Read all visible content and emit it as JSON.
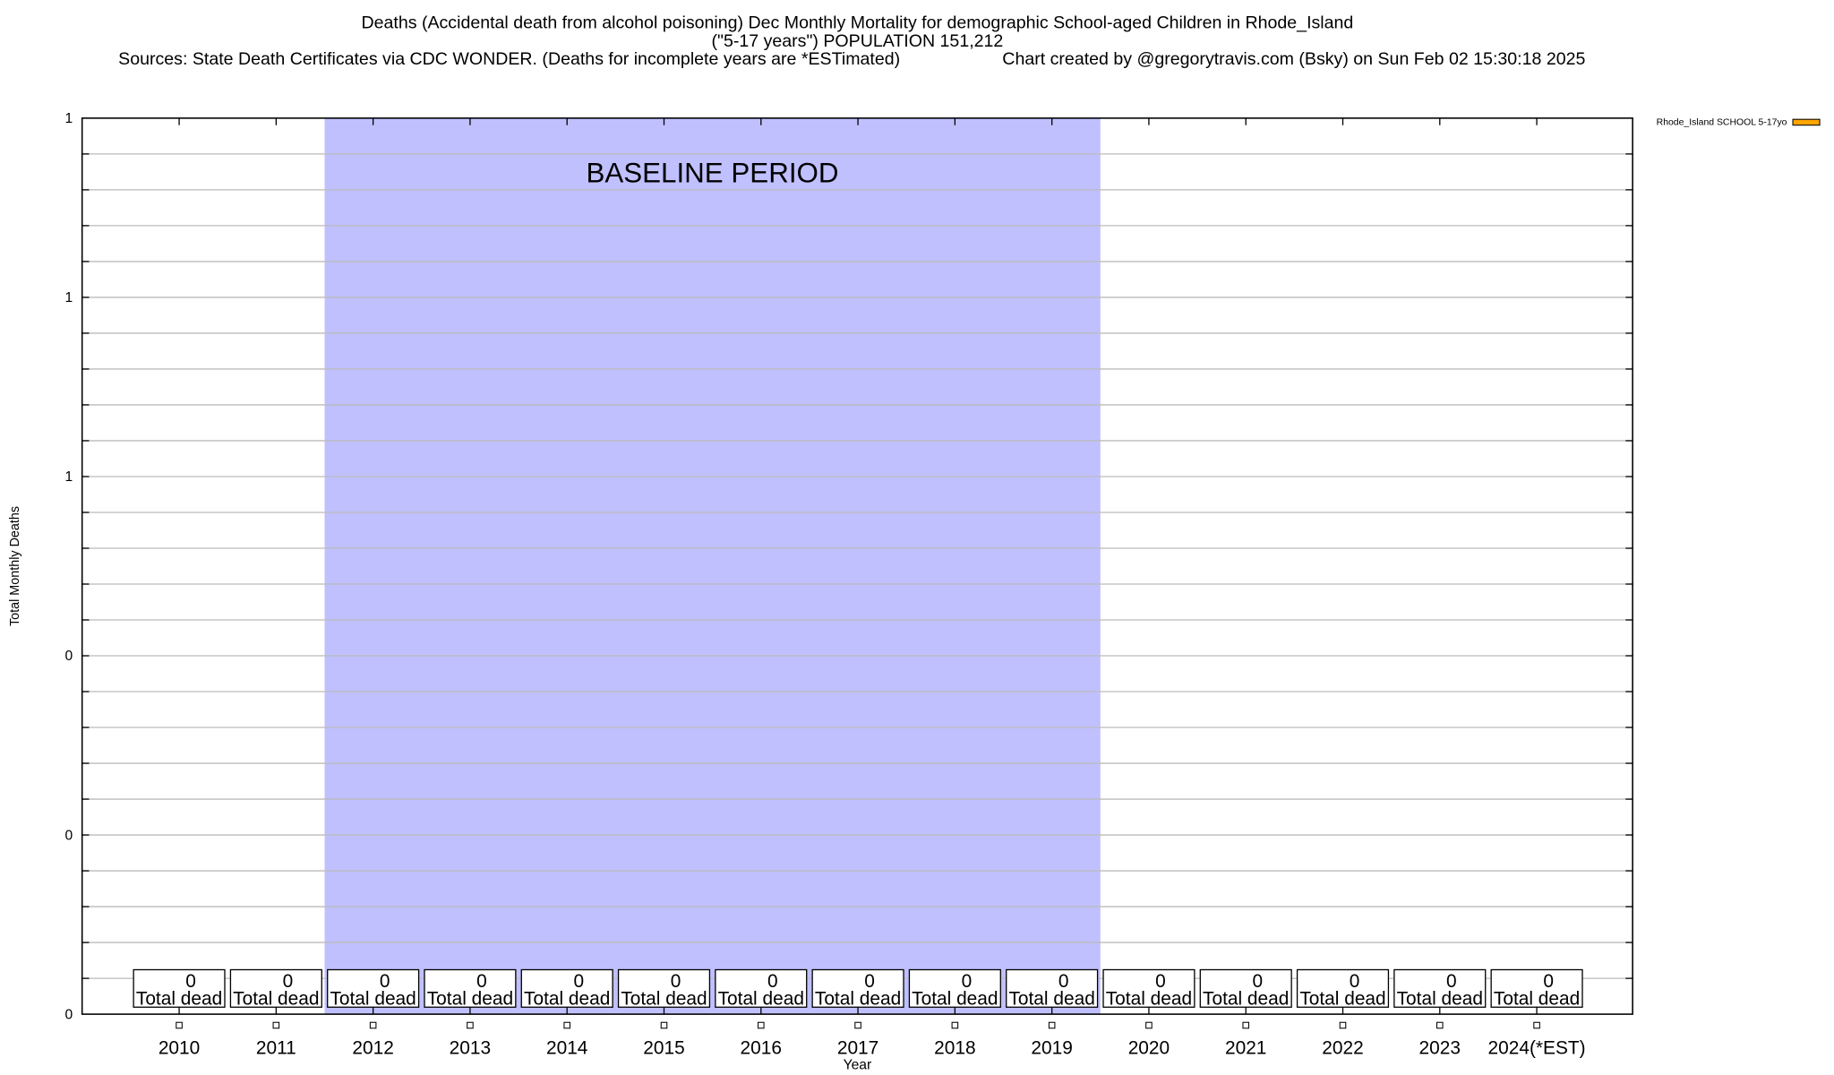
{
  "chart_data": {
    "type": "bar",
    "title_lines": [
      "Deaths (Accidental death from alcohol poisoning) Dec Monthly Mortality for demographic School-aged Children in Rhode_Island",
      "(\"5-17 years\") POPULATION 151,212"
    ],
    "sources": "Sources: State Death Certificates via CDC WONDER. (Deaths for incomplete years are *ESTimated)",
    "credit": "Chart created by @gregorytravis.com (Bsky) on Sun Feb 02 15:30:18 2025",
    "xlabel": "Year",
    "ylabel": "Total Monthly Deaths",
    "ylim": [
      0,
      1
    ],
    "yticks": [
      0,
      0.2,
      0.4,
      0.6,
      0.8,
      1.0
    ],
    "ytick_labels": [
      "0",
      "0",
      "0",
      "1",
      "1",
      "1"
    ],
    "categories": [
      "2010",
      "2011",
      "2012",
      "2013",
      "2014",
      "2015",
      "2016",
      "2017",
      "2018",
      "2019",
      "2020",
      "2021",
      "2022",
      "2023",
      "2024(*EST)"
    ],
    "series": [
      {
        "name": "Rhode_Island SCHOOL 5-17yo",
        "color": "#FFA500",
        "values": [
          0,
          0,
          0,
          0,
          0,
          0,
          0,
          0,
          0,
          0,
          0,
          0,
          0,
          0,
          0
        ]
      }
    ],
    "bar_label_suffix": "Total dead",
    "baseline": {
      "label": "BASELINE PERIOD",
      "from": "2012",
      "to": "2019",
      "color": "#C0C0FF"
    },
    "grid": true,
    "legend_placement": "top-right outside"
  }
}
